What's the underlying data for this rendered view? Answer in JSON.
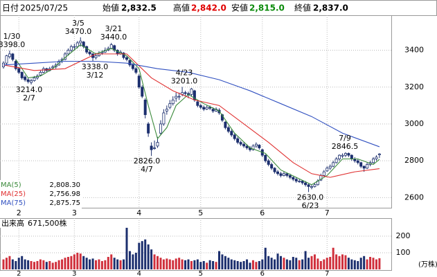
{
  "header": {
    "date_label": "日付",
    "date": "2025/07/25",
    "open_label": "始値",
    "open": "2,832.5",
    "high_label": "高値",
    "high": "2,842.0",
    "low_label": "安値",
    "low": "2,815.0",
    "close_label": "終値",
    "close": "2,837.0"
  },
  "chart_data": {
    "type": "candlestick",
    "categories": [
      null,
      null,
      null,
      null,
      null,
      "2",
      null,
      null,
      null,
      null,
      null,
      null,
      null,
      null,
      null,
      null,
      null,
      null,
      null,
      null,
      null,
      null,
      null,
      "3",
      null,
      null,
      null,
      null,
      null,
      null,
      null,
      null,
      null,
      null,
      null,
      null,
      null,
      null,
      null,
      null,
      null,
      null,
      null,
      null,
      "4",
      null,
      null,
      null,
      null,
      null,
      null,
      null,
      null,
      null,
      null,
      null,
      null,
      null,
      null,
      null,
      null,
      null,
      null,
      null,
      "5",
      null,
      null,
      null,
      null,
      null,
      null,
      null,
      null,
      null,
      null,
      null,
      null,
      null,
      null,
      null,
      null,
      null,
      null,
      null,
      "6",
      null,
      null,
      null,
      null,
      null,
      null,
      null,
      null,
      null,
      null,
      null,
      null,
      null,
      null,
      null,
      null,
      null,
      null,
      null,
      null,
      "7",
      null,
      null,
      null,
      null,
      null,
      null,
      null,
      null,
      null,
      null,
      null,
      null,
      null,
      null,
      null,
      null,
      null
    ],
    "candles": [
      [
        3310,
        3340,
        3300,
        3330
      ],
      [
        3330,
        3375,
        3320,
        3370
      ],
      [
        3365,
        3398,
        3355,
        3380
      ],
      [
        3380,
        3385,
        3340,
        3350
      ],
      [
        3340,
        3350,
        3290,
        3300
      ],
      [
        3300,
        3310,
        3270,
        3280
      ],
      [
        3280,
        3285,
        3240,
        3250
      ],
      [
        3255,
        3265,
        3230,
        3240
      ],
      [
        3240,
        3250,
        3220,
        3230
      ],
      [
        3225,
        3245,
        3214,
        3235
      ],
      [
        3235,
        3260,
        3230,
        3250
      ],
      [
        3250,
        3270,
        3240,
        3260
      ],
      [
        3265,
        3290,
        3260,
        3280
      ],
      [
        3280,
        3310,
        3275,
        3300
      ],
      [
        3300,
        3305,
        3280,
        3290
      ],
      [
        3290,
        3310,
        3285,
        3300
      ],
      [
        3305,
        3320,
        3295,
        3310
      ],
      [
        3310,
        3330,
        3300,
        3320
      ],
      [
        3320,
        3350,
        3315,
        3340
      ],
      [
        3345,
        3360,
        3330,
        3350
      ],
      [
        3350,
        3390,
        3345,
        3380
      ],
      [
        3380,
        3410,
        3370,
        3400
      ],
      [
        3400,
        3430,
        3390,
        3420
      ],
      [
        3420,
        3435,
        3400,
        3420
      ],
      [
        3420,
        3450,
        3410,
        3440
      ],
      [
        3440,
        3470,
        3420,
        3450
      ],
      [
        3445,
        3450,
        3410,
        3420
      ],
      [
        3420,
        3425,
        3380,
        3390
      ],
      [
        3390,
        3400,
        3370,
        3380
      ],
      [
        3380,
        3385,
        3338,
        3360
      ],
      [
        3360,
        3385,
        3350,
        3370
      ],
      [
        3370,
        3395,
        3365,
        3380
      ],
      [
        3385,
        3400,
        3375,
        3390
      ],
      [
        3390,
        3415,
        3385,
        3400
      ],
      [
        3400,
        3420,
        3395,
        3410
      ],
      [
        3410,
        3440,
        3405,
        3430
      ],
      [
        3425,
        3430,
        3390,
        3400
      ],
      [
        3400,
        3405,
        3370,
        3380
      ],
      [
        3380,
        3400,
        3375,
        3390
      ],
      [
        3385,
        3390,
        3350,
        3360
      ],
      [
        3360,
        3370,
        3340,
        3350
      ],
      [
        3345,
        3350,
        3310,
        3320
      ],
      [
        3320,
        3330,
        3290,
        3300
      ],
      [
        3300,
        3310,
        3270,
        3280
      ],
      [
        3260,
        3270,
        3190,
        3200
      ],
      [
        3200,
        3210,
        3140,
        3150
      ],
      [
        3130,
        3140,
        3030,
        3050
      ],
      [
        3000,
        3010,
        2930,
        2950
      ],
      [
        2880,
        2900,
        2826,
        2860
      ],
      [
        2870,
        2910,
        2860,
        2870
      ],
      [
        2880,
        2930,
        2870,
        2900
      ],
      [
        2950,
        3020,
        2940,
        3000
      ],
      [
        3000,
        3080,
        2990,
        3060
      ],
      [
        3070,
        3100,
        3050,
        3080
      ],
      [
        3090,
        3130,
        3080,
        3110
      ],
      [
        3110,
        3150,
        3100,
        3130
      ],
      [
        3140,
        3170,
        3120,
        3150
      ],
      [
        3150,
        3170,
        3130,
        3150
      ],
      [
        3160,
        3201,
        3150,
        3170
      ],
      [
        3170,
        3180,
        3150,
        3165
      ],
      [
        3165,
        3175,
        3140,
        3160
      ],
      [
        3160,
        3195,
        3150,
        3190
      ],
      [
        3180,
        3185,
        3120,
        3130
      ],
      [
        3120,
        3130,
        3090,
        3100
      ],
      [
        3100,
        3110,
        3080,
        3090
      ],
      [
        3090,
        3100,
        3070,
        3080
      ],
      [
        3080,
        3100,
        3075,
        3090
      ],
      [
        3090,
        3100,
        3075,
        3085
      ],
      [
        3080,
        3090,
        3060,
        3070
      ],
      [
        3070,
        3090,
        3065,
        3080
      ],
      [
        3075,
        3085,
        3050,
        3060
      ],
      [
        3050,
        3055,
        3010,
        3020
      ],
      [
        3010,
        3015,
        2970,
        2980
      ],
      [
        2980,
        2990,
        2950,
        2960
      ],
      [
        2960,
        2970,
        2930,
        2940
      ],
      [
        2940,
        2950,
        2910,
        2920
      ],
      [
        2920,
        2930,
        2890,
        2900
      ],
      [
        2900,
        2910,
        2880,
        2890
      ],
      [
        2890,
        2900,
        2870,
        2880
      ],
      [
        2880,
        2890,
        2860,
        2870
      ],
      [
        2870,
        2880,
        2850,
        2860
      ],
      [
        2860,
        2890,
        2855,
        2880
      ],
      [
        2880,
        2900,
        2870,
        2890
      ],
      [
        2885,
        2890,
        2860,
        2870
      ],
      [
        2860,
        2865,
        2820,
        2830
      ],
      [
        2830,
        2835,
        2790,
        2800
      ],
      [
        2800,
        2810,
        2770,
        2780
      ],
      [
        2780,
        2790,
        2750,
        2760
      ],
      [
        2760,
        2765,
        2730,
        2740
      ],
      [
        2740,
        2750,
        2720,
        2730
      ],
      [
        2730,
        2740,
        2710,
        2720
      ],
      [
        2720,
        2740,
        2715,
        2730
      ],
      [
        2730,
        2735,
        2710,
        2720
      ],
      [
        2720,
        2730,
        2700,
        2710
      ],
      [
        2710,
        2715,
        2690,
        2700
      ],
      [
        2700,
        2710,
        2680,
        2690
      ],
      [
        2690,
        2700,
        2680,
        2690
      ],
      [
        2690,
        2695,
        2670,
        2680
      ],
      [
        2680,
        2690,
        2660,
        2670
      ],
      [
        2670,
        2675,
        2630,
        2660
      ],
      [
        2655,
        2670,
        2645,
        2660
      ],
      [
        2660,
        2680,
        2655,
        2670
      ],
      [
        2670,
        2700,
        2665,
        2690
      ],
      [
        2695,
        2730,
        2690,
        2720
      ],
      [
        2720,
        2750,
        2715,
        2740
      ],
      [
        2745,
        2770,
        2740,
        2760
      ],
      [
        2760,
        2780,
        2750,
        2770
      ],
      [
        2770,
        2800,
        2765,
        2790
      ],
      [
        2790,
        2820,
        2785,
        2810
      ],
      [
        2810,
        2835,
        2800,
        2830
      ],
      [
        2825,
        2840,
        2815,
        2830
      ],
      [
        2830,
        2846.5,
        2820,
        2840
      ],
      [
        2840,
        2845,
        2820,
        2830
      ],
      [
        2830,
        2835,
        2800,
        2810
      ],
      [
        2810,
        2820,
        2790,
        2800
      ],
      [
        2800,
        2810,
        2780,
        2790
      ],
      [
        2790,
        2795,
        2760,
        2770
      ],
      [
        2770,
        2775,
        2740,
        2760
      ],
      [
        2760,
        2790,
        2755,
        2780
      ],
      [
        2780,
        2800,
        2770,
        2790
      ],
      [
        2790,
        2820,
        2785,
        2810
      ],
      [
        2810,
        2830,
        2800,
        2820
      ],
      [
        2832.5,
        2842,
        2815,
        2837
      ]
    ],
    "up_color": "#ffffff",
    "down_color": "#1c2f6e",
    "ylim": [
      2545,
      3590
    ],
    "yticks": [
      2600,
      2800,
      3000,
      3200,
      3400
    ],
    "grid": true,
    "ma_series": [
      {
        "name": "MA(5)",
        "value_label": "2,808.30",
        "color": "#3a8a3a",
        "x": [
          4,
          8,
          12,
          16,
          20,
          25,
          30,
          35,
          40,
          44,
          47,
          50,
          53,
          56,
          60,
          65,
          70,
          75,
          80,
          85,
          90,
          95,
          100,
          105,
          110,
          115,
          120,
          122
        ],
        "values": [
          3350,
          3250,
          3260,
          3300,
          3360,
          3430,
          3380,
          3410,
          3370,
          3300,
          3100,
          2920,
          2980,
          3100,
          3160,
          3110,
          3070,
          2950,
          2870,
          2840,
          2750,
          2710,
          2670,
          2720,
          2810,
          2810,
          2780,
          2808
        ]
      },
      {
        "name": "MA(25)",
        "value_label": "2,756.98",
        "color": "#e03030",
        "x": [
          0,
          10,
          20,
          30,
          40,
          48,
          55,
          62,
          70,
          78,
          86,
          94,
          100,
          106,
          114,
          122
        ],
        "values": [
          3320,
          3290,
          3300,
          3380,
          3380,
          3250,
          3180,
          3130,
          3100,
          3000,
          2900,
          2790,
          2730,
          2710,
          2740,
          2757
        ]
      },
      {
        "name": "MA(75)",
        "value_label": "2,875.75",
        "color": "#3050c0",
        "x": [
          0,
          10,
          20,
          30,
          40,
          50,
          60,
          70,
          80,
          90,
          100,
          110,
          122
        ],
        "values": [
          3320,
          3330,
          3340,
          3340,
          3330,
          3300,
          3280,
          3240,
          3180,
          3110,
          3040,
          2950,
          2876
        ]
      }
    ],
    "annotations": [
      {
        "date": "1/30",
        "value": 3398,
        "label": "3398.0"
      },
      {
        "date": "2/7",
        "value": 3214,
        "label": "3214.0"
      },
      {
        "date": "3/5",
        "value": 3470,
        "label": "3470.0"
      },
      {
        "date": "3/12",
        "value": 3338,
        "label": "3338.0"
      },
      {
        "date": "3/21",
        "value": 3440,
        "label": "3440.0"
      },
      {
        "date": "4/7",
        "value": 2826,
        "label": "2826.0"
      },
      {
        "date": "4/23",
        "value": 3201,
        "label": "3201.0"
      },
      {
        "date": "6/23",
        "value": 2630,
        "label": "2630.0"
      },
      {
        "date": "7/9",
        "value": 2846.5,
        "label": "2846.5"
      }
    ],
    "volume": {
      "title": "出来高",
      "last_label": "671,500株",
      "unit": "(万株)",
      "up_color": "#d0303c",
      "down_color": "#1c2f6e",
      "ylim": [
        0,
        308
      ],
      "yticks": [
        100,
        200
      ],
      "values": [
        60,
        70,
        80,
        60,
        50,
        70,
        80,
        60,
        55,
        50,
        45,
        50,
        60,
        55,
        45,
        50,
        40,
        45,
        55,
        60,
        70,
        75,
        80,
        90,
        100,
        95,
        80,
        70,
        60,
        65,
        55,
        60,
        50,
        55,
        75,
        90,
        70,
        60,
        55,
        60,
        250,
        110,
        90,
        100,
        160,
        170,
        180,
        150,
        120,
        90,
        80,
        70,
        60,
        65,
        60,
        55,
        65,
        70,
        60,
        55,
        60,
        50,
        55,
        60,
        45,
        50,
        40,
        55,
        50,
        45,
        110,
        90,
        80,
        70,
        60,
        55,
        50,
        45,
        50,
        60,
        40,
        55,
        45,
        50,
        60,
        130,
        80,
        70,
        60,
        95,
        80,
        70,
        60,
        55,
        75,
        70,
        55,
        60,
        110,
        70,
        80,
        90,
        65,
        50,
        60,
        70,
        75,
        130,
        90,
        80,
        90,
        85,
        70,
        60,
        55,
        50,
        70,
        80,
        60,
        75,
        70,
        60,
        67.15
      ]
    }
  }
}
